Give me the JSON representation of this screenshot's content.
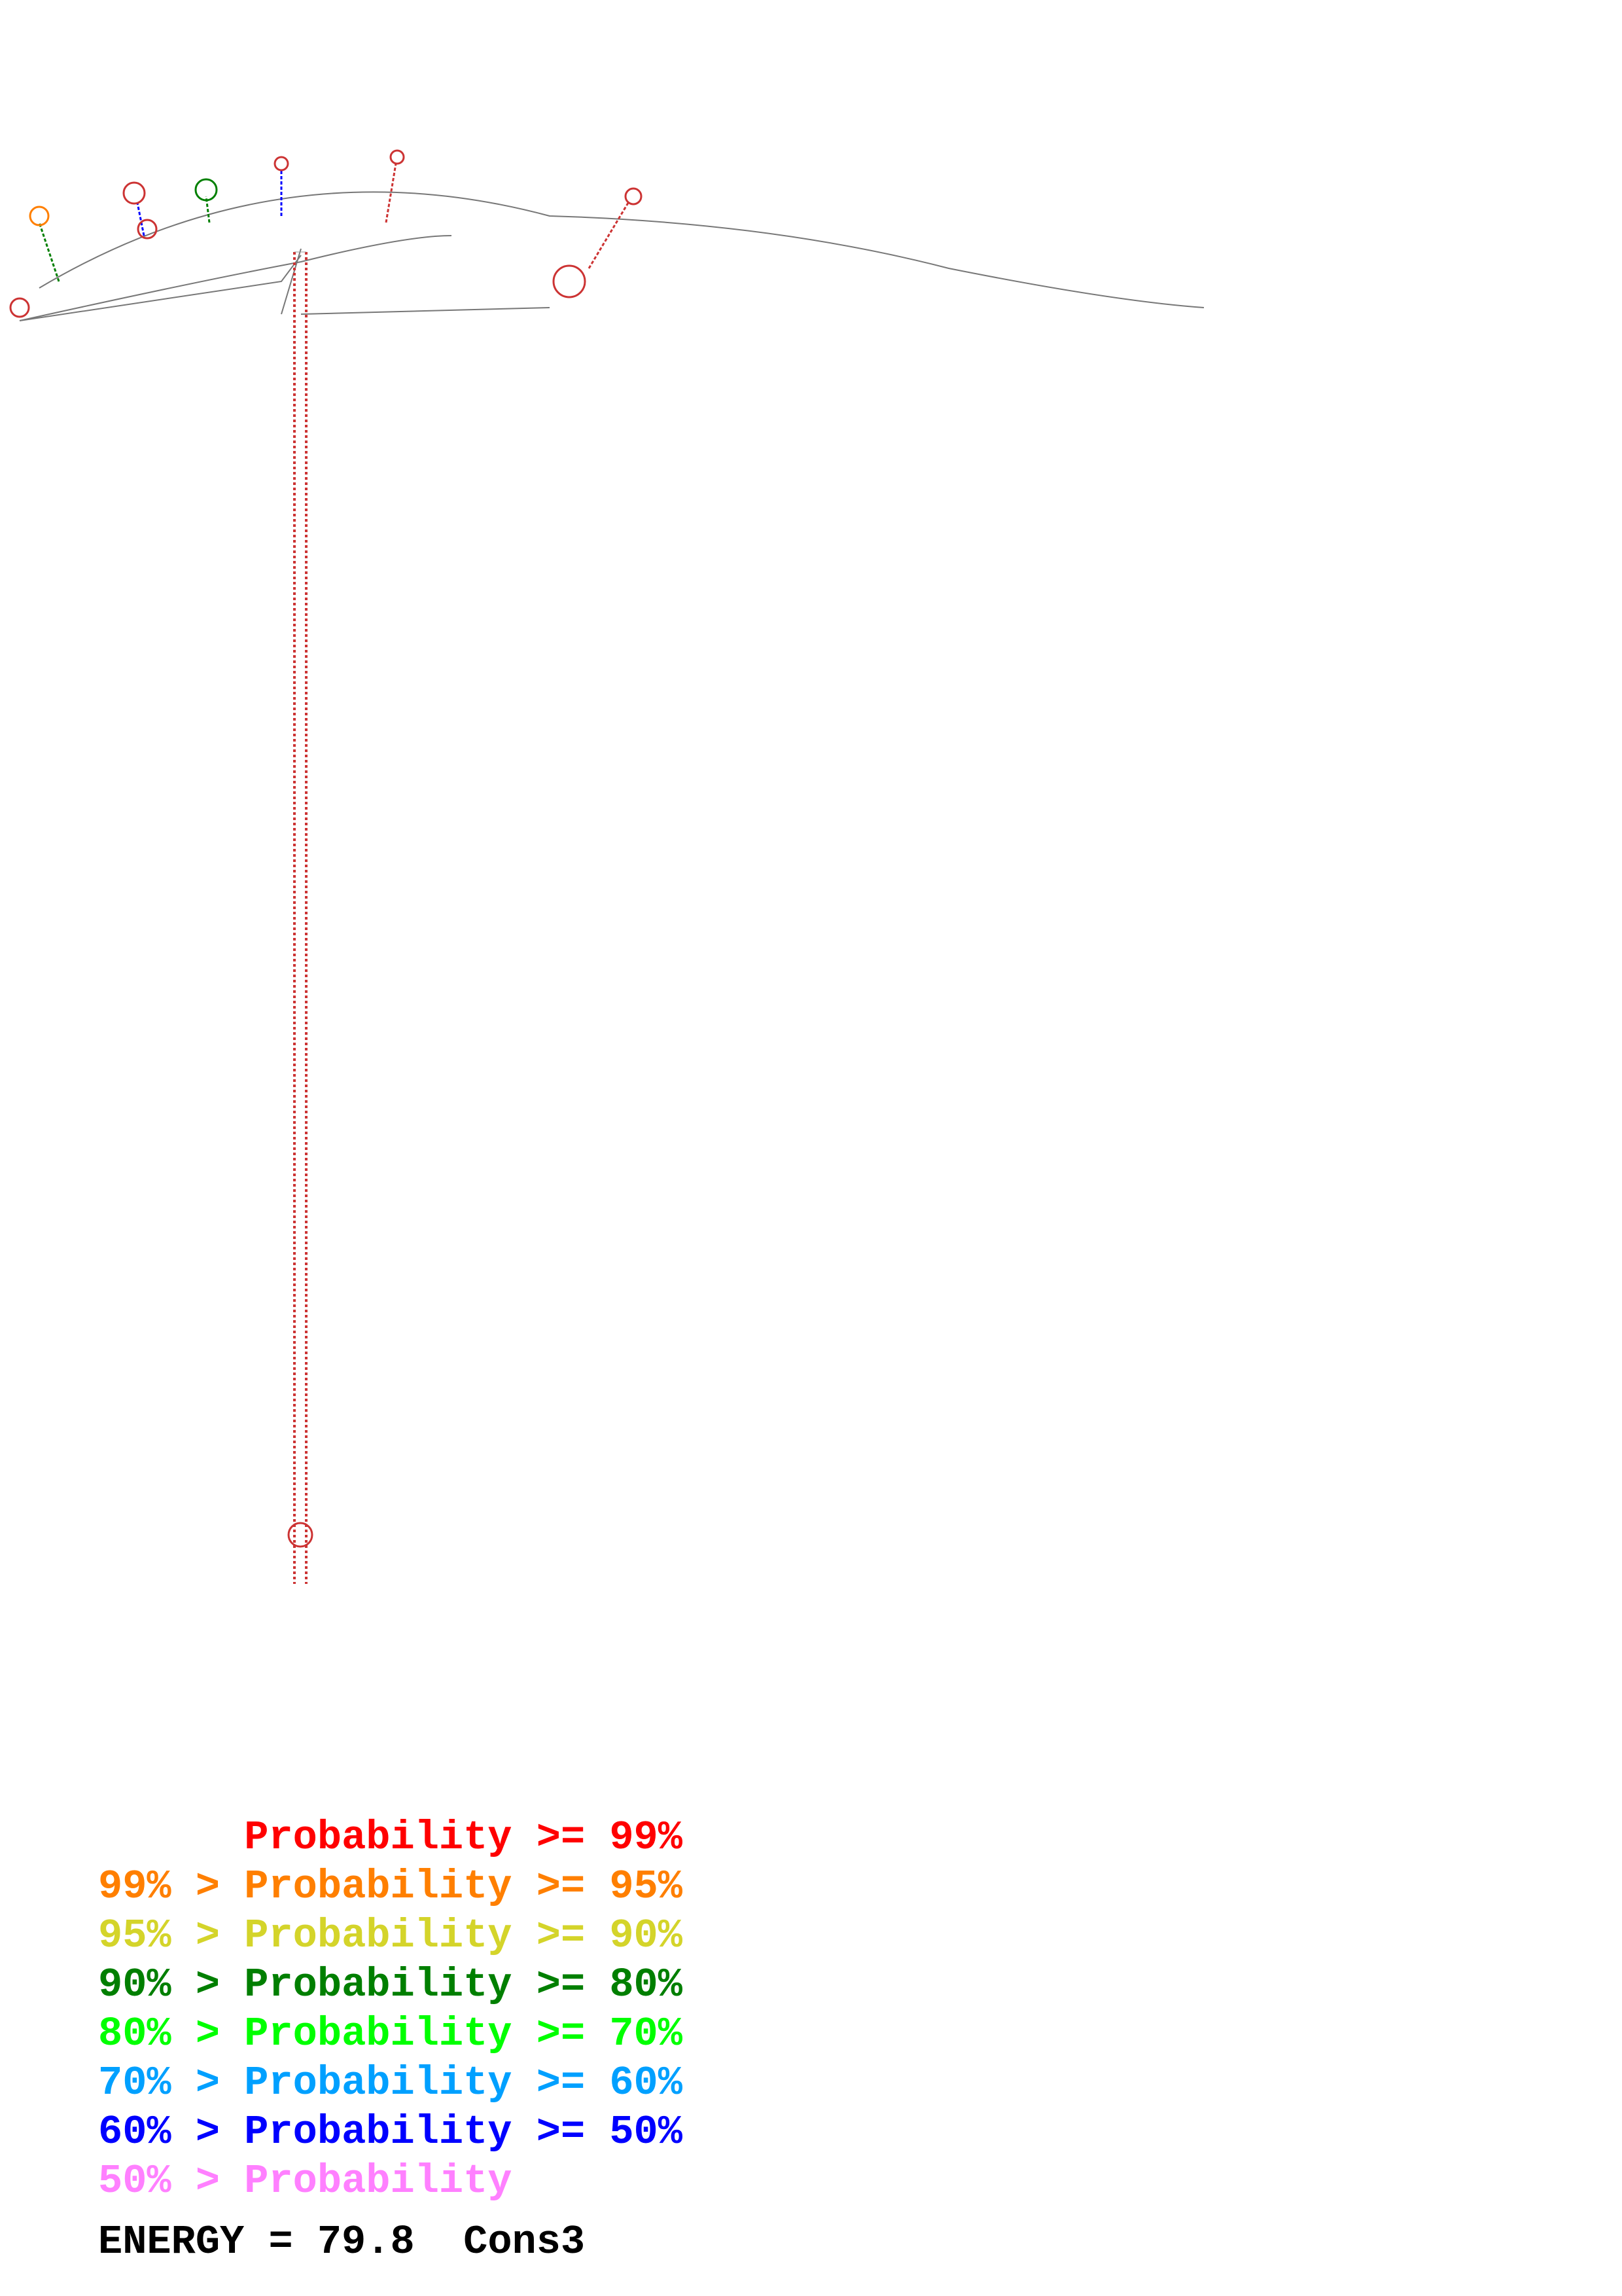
{
  "colors": {
    "p99": "#ff0000",
    "p95": "#ff7f00",
    "p90": "#d4d42a",
    "p80": "#007f00",
    "p70": "#00ff00",
    "p60": "#00a0ff",
    "p50": "#0000ff",
    "plow": "#ff80ff",
    "backbone": "#777777"
  },
  "legend": [
    {
      "prefix": "    ",
      "label": "Probability",
      "suffix": " >= 99%",
      "color_key": "p99"
    },
    {
      "prefix": "99% > ",
      "label": "Probability",
      "suffix": " >= 95%",
      "color_key": "p95"
    },
    {
      "prefix": "95% > ",
      "label": "Probability",
      "suffix": " >= 90%",
      "color_key": "p90"
    },
    {
      "prefix": "90% > ",
      "label": "Probability",
      "suffix": " >= 80%",
      "color_key": "p80"
    },
    {
      "prefix": "80% > ",
      "label": "Probability",
      "suffix": " >= 70%",
      "color_key": "p70"
    },
    {
      "prefix": "70% > ",
      "label": "Probability",
      "suffix": " >= 60%",
      "color_key": "p60"
    },
    {
      "prefix": "60% > ",
      "label": "Probability",
      "suffix": " >= 50%",
      "color_key": "p50"
    },
    {
      "prefix": "50% > ",
      "label": "Probability",
      "suffix": "",
      "color_key": "plow"
    }
  ],
  "energy": {
    "label": "ENERGY = 79.8",
    "name": "Cons3"
  }
}
